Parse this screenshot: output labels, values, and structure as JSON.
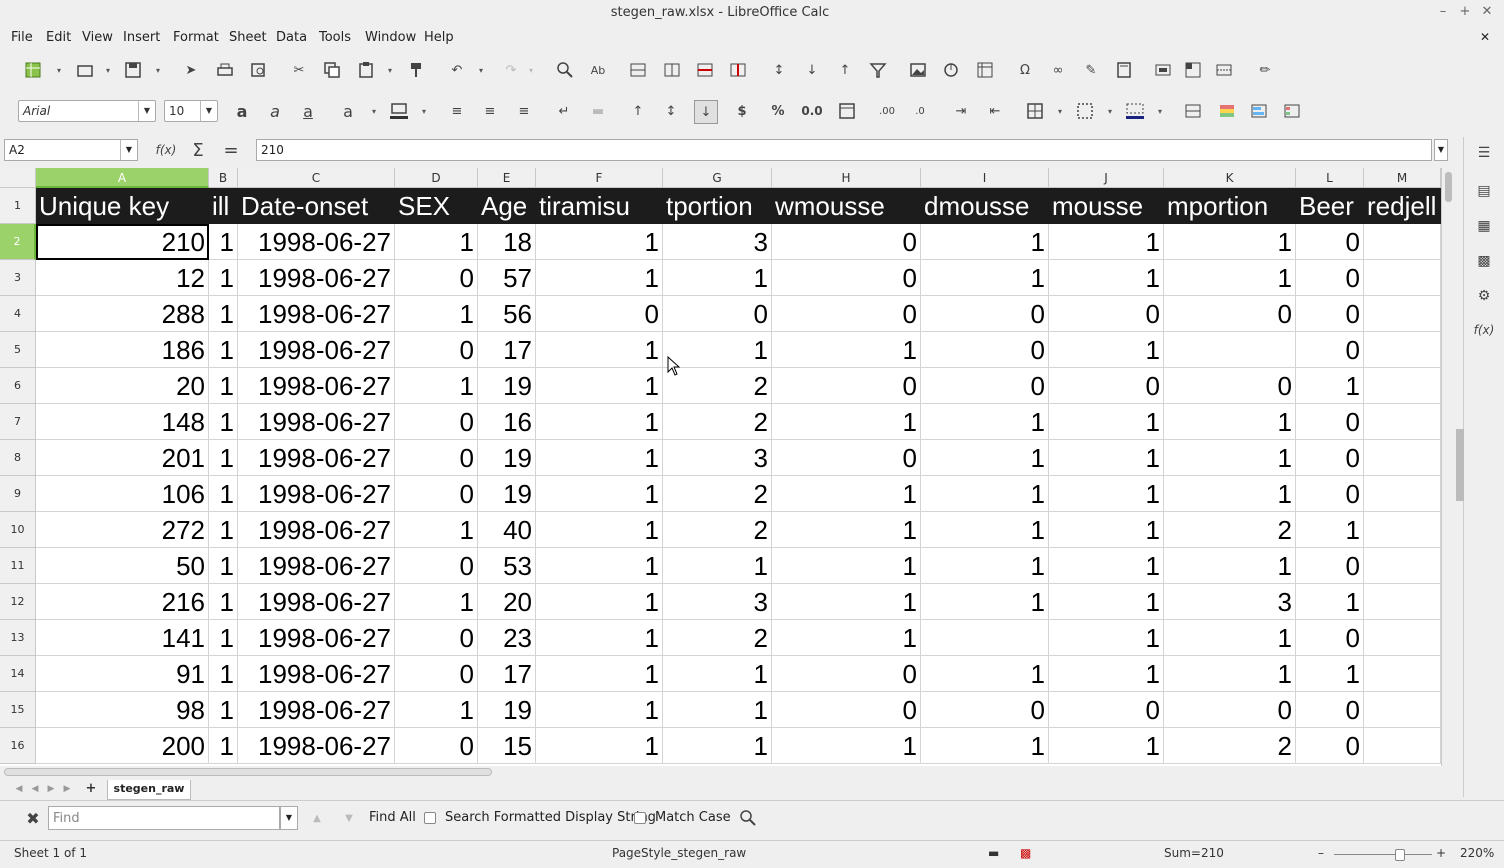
{
  "window": {
    "title": "stegen_raw.xlsx - LibreOffice Calc"
  },
  "menu": [
    "File",
    "Edit",
    "View",
    "Insert",
    "Format",
    "Sheet",
    "Data",
    "Tools",
    "Window",
    "Help"
  ],
  "formatting": {
    "font_name": "Arial",
    "font_size": "10"
  },
  "formula_bar": {
    "cell_ref": "A2",
    "fx_label": "f(x)",
    "value": "210"
  },
  "columns": [
    "A",
    "B",
    "C",
    "D",
    "E",
    "F",
    "G",
    "H",
    "I",
    "J",
    "K",
    "L",
    "M"
  ],
  "row_numbers": [
    "1",
    "2",
    "3",
    "4",
    "5",
    "6",
    "7",
    "8",
    "9",
    "10",
    "11",
    "12",
    "13",
    "14",
    "15",
    "16"
  ],
  "header_row": [
    "Unique key",
    "ill",
    "Date-onset",
    "SEX",
    "Age",
    "tiramisu",
    "tportion",
    "wmousse",
    "dmousse",
    "mousse",
    "mportion",
    "Beer",
    "redjell"
  ],
  "rows": [
    [
      "210",
      "1",
      "1998-06-27",
      "1",
      "18",
      "1",
      "3",
      "0",
      "1",
      "1",
      "1",
      "0",
      ""
    ],
    [
      "12",
      "1",
      "1998-06-27",
      "0",
      "57",
      "1",
      "1",
      "0",
      "1",
      "1",
      "1",
      "0",
      ""
    ],
    [
      "288",
      "1",
      "1998-06-27",
      "1",
      "56",
      "0",
      "0",
      "0",
      "0",
      "0",
      "0",
      "0",
      ""
    ],
    [
      "186",
      "1",
      "1998-06-27",
      "0",
      "17",
      "1",
      "1",
      "1",
      "0",
      "1",
      "",
      "0",
      ""
    ],
    [
      "20",
      "1",
      "1998-06-27",
      "1",
      "19",
      "1",
      "2",
      "0",
      "0",
      "0",
      "0",
      "1",
      ""
    ],
    [
      "148",
      "1",
      "1998-06-27",
      "0",
      "16",
      "1",
      "2",
      "1",
      "1",
      "1",
      "1",
      "0",
      ""
    ],
    [
      "201",
      "1",
      "1998-06-27",
      "0",
      "19",
      "1",
      "3",
      "0",
      "1",
      "1",
      "1",
      "0",
      ""
    ],
    [
      "106",
      "1",
      "1998-06-27",
      "0",
      "19",
      "1",
      "2",
      "1",
      "1",
      "1",
      "1",
      "0",
      ""
    ],
    [
      "272",
      "1",
      "1998-06-27",
      "1",
      "40",
      "1",
      "2",
      "1",
      "1",
      "1",
      "2",
      "1",
      ""
    ],
    [
      "50",
      "1",
      "1998-06-27",
      "0",
      "53",
      "1",
      "1",
      "1",
      "1",
      "1",
      "1",
      "0",
      ""
    ],
    [
      "216",
      "1",
      "1998-06-27",
      "1",
      "20",
      "1",
      "3",
      "1",
      "1",
      "1",
      "3",
      "1",
      ""
    ],
    [
      "141",
      "1",
      "1998-06-27",
      "0",
      "23",
      "1",
      "2",
      "1",
      "",
      "1",
      "1",
      "0",
      ""
    ],
    [
      "91",
      "1",
      "1998-06-27",
      "0",
      "17",
      "1",
      "1",
      "0",
      "1",
      "1",
      "1",
      "1",
      ""
    ],
    [
      "98",
      "1",
      "1998-06-27",
      "1",
      "19",
      "1",
      "1",
      "0",
      "0",
      "0",
      "0",
      "0",
      ""
    ],
    [
      "200",
      "1",
      "1998-06-27",
      "0",
      "15",
      "1",
      "1",
      "1",
      "1",
      "1",
      "2",
      "0",
      ""
    ]
  ],
  "sheet_tab": "stegen_raw",
  "find_toolbar": {
    "placeholder": "Find",
    "find_all": "Find All",
    "search_formatted": "Search Formatted Display String",
    "match_case": "Match Case"
  },
  "status": {
    "sheet": "Sheet 1 of 1",
    "page_style": "PageStyle_stegen_raw",
    "sum": "Sum=210",
    "zoom": "220%"
  }
}
